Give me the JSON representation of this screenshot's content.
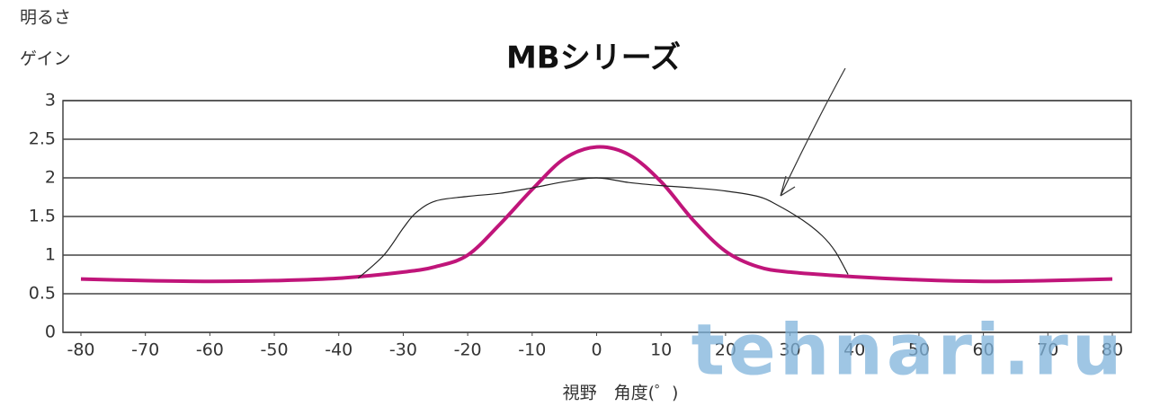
{
  "chart_data": {
    "type": "line",
    "title": "MBシリーズ",
    "ylabel": [
      "明るさ",
      "ゲイン"
    ],
    "xlabel": "視野　角度(゜)",
    "watermark": "tehnari.ru",
    "xlim": [
      -80,
      80
    ],
    "ylim": [
      0,
      3
    ],
    "xticks": [
      -80,
      -70,
      -60,
      -50,
      -40,
      -30,
      -20,
      -10,
      0,
      10,
      20,
      30,
      40,
      50,
      60,
      70,
      80
    ],
    "yticks": [
      0,
      0.5,
      1,
      1.5,
      2,
      2.5,
      3
    ],
    "grid": true,
    "series": [
      {
        "color": "#c0157a",
        "width": 4,
        "x": [
          -80,
          -70,
          -60,
          -50,
          -40,
          -30,
          -25,
          -20,
          -15,
          -10,
          -5,
          0,
          5,
          10,
          15,
          20,
          25,
          30,
          40,
          50,
          60,
          70,
          80
        ],
        "values": [
          0.69,
          0.67,
          0.66,
          0.67,
          0.7,
          0.78,
          0.85,
          1.0,
          1.4,
          1.85,
          2.25,
          2.4,
          2.3,
          1.95,
          1.45,
          1.05,
          0.85,
          0.78,
          0.72,
          0.68,
          0.66,
          0.67,
          0.69
        ]
      },
      {
        "color": "#222222",
        "width": 1.2,
        "x": [
          -37,
          -33,
          -30,
          -28,
          -25,
          -20,
          -15,
          -10,
          -5,
          0,
          5,
          10,
          15,
          20,
          25,
          28,
          32,
          35,
          37,
          39
        ],
        "values": [
          0.7,
          1.0,
          1.35,
          1.55,
          1.7,
          1.76,
          1.8,
          1.87,
          1.95,
          2.0,
          1.94,
          1.9,
          1.87,
          1.83,
          1.76,
          1.65,
          1.45,
          1.25,
          1.05,
          0.75
        ]
      }
    ]
  }
}
